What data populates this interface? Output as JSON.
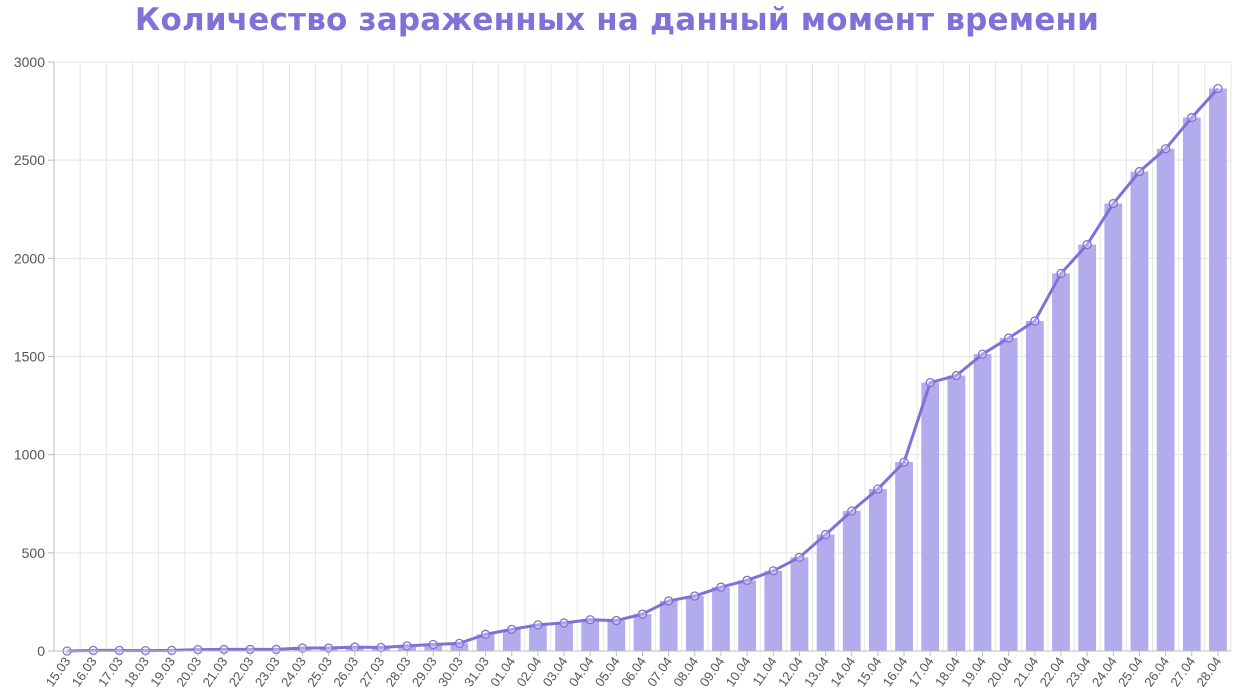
{
  "chart_data": {
    "type": "bar",
    "title": "Количество зараженных на данный момент времени",
    "xlabel": "",
    "ylabel": "",
    "ylim": [
      0,
      3000
    ],
    "yticks": [
      0,
      500,
      1000,
      1500,
      2000,
      2500,
      3000
    ],
    "grid": true,
    "categories": [
      "15.03",
      "16.03",
      "17.03",
      "18.03",
      "19.03",
      "20.03",
      "21.03",
      "22.03",
      "23.03",
      "24.03",
      "25.03",
      "26.03",
      "27.03",
      "28.03",
      "29.03",
      "30.03",
      "31.03",
      "01.04",
      "02.04",
      "03.04",
      "04.04",
      "05.04",
      "06.04",
      "07.04",
      "08.04",
      "09.04",
      "10.04",
      "11.04",
      "12.04",
      "13.04",
      "14.04",
      "15.04",
      "16.04",
      "17.04",
      "18.04",
      "19.04",
      "20.04",
      "21.04",
      "22.04",
      "23.04",
      "24.04",
      "25.04",
      "26.04",
      "27.04",
      "28.04"
    ],
    "series": [
      {
        "type": "bar",
        "color": "#b3acec",
        "values": [
          0,
          3,
          3,
          2,
          3,
          7,
          8,
          8,
          8,
          15,
          15,
          20,
          18,
          26,
          33,
          39,
          85,
          110,
          133,
          143,
          159,
          155,
          188,
          255,
          280,
          325,
          360,
          408,
          477,
          593,
          713,
          825,
          962,
          1367,
          1403,
          1512,
          1594,
          1681,
          1923,
          2070,
          2279,
          2442,
          2558,
          2717,
          2865
        ]
      },
      {
        "type": "line",
        "color": "#8270d9",
        "values": [
          0,
          3,
          3,
          2,
          3,
          7,
          8,
          8,
          8,
          15,
          15,
          20,
          18,
          26,
          33,
          39,
          85,
          110,
          133,
          143,
          159,
          155,
          188,
          255,
          280,
          325,
          360,
          408,
          477,
          593,
          713,
          825,
          962,
          1367,
          1403,
          1512,
          1594,
          1681,
          1923,
          2070,
          2279,
          2442,
          2558,
          2717,
          2865
        ]
      }
    ]
  }
}
